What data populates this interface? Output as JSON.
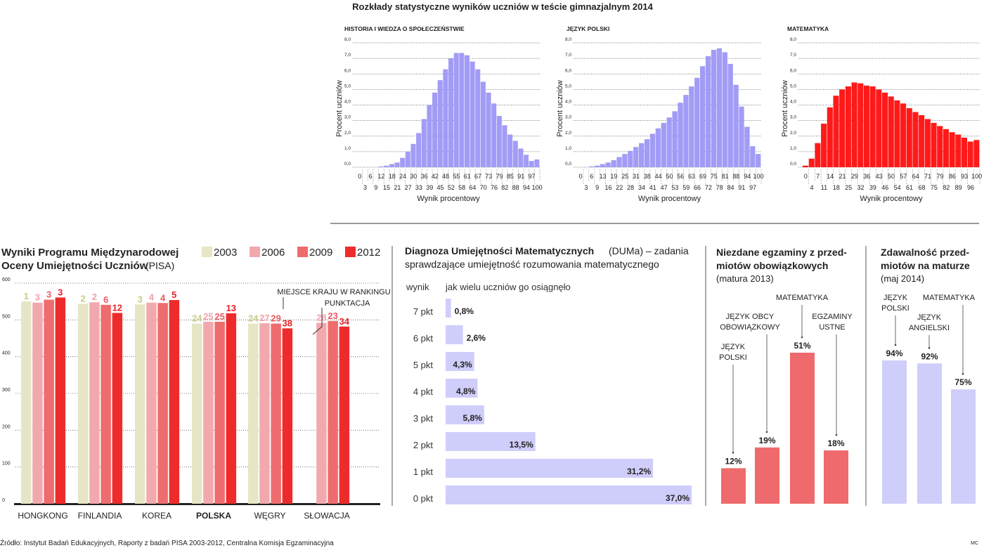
{
  "title": "Rozkłady statystyczne wyników uczniów w teście gimnazjalnym 2014",
  "source": "Źródło: Instytut Badań Edukacyjnych, Raporty z badań PISA 2003-2012, Centralna Komisja Egzaminacyjna",
  "author": "MC",
  "colors": {
    "purple": "#a29cf6",
    "red": "#ff1a1a",
    "lavender": "#cfcdfa",
    "salmon": "#ef6a6c",
    "y2003": "#e6e6c6",
    "y2006": "#f2a9ae",
    "y2009": "#ef6c6e",
    "y2012": "#ee2b2b"
  },
  "chart_data": [
    {
      "type": "bar",
      "title": "HISTORIA I WIEDZA O SPOŁECZEŃSTWIE",
      "xlabel": "Wynik procentowy",
      "ylabel": "Procent uczniów",
      "ylim": [
        0,
        8
      ],
      "yticks": [
        "0,0",
        "1,0",
        "2,0",
        "3,0",
        "4,0",
        "5,0",
        "6,0",
        "7,0",
        "8,0"
      ],
      "grid": true,
      "color": "#a29cf6",
      "categories": [
        "0",
        "3",
        "6",
        "9",
        "12",
        "15",
        "18",
        "21",
        "24",
        "27",
        "30",
        "33",
        "36",
        "39",
        "42",
        "45",
        "48",
        "52",
        "55",
        "58",
        "61",
        "64",
        "67",
        "70",
        "73",
        "76",
        "79",
        "82",
        "85",
        "88",
        "91",
        "94",
        "97",
        "100"
      ],
      "values": [
        0,
        0,
        0,
        0,
        0.05,
        0.1,
        0.2,
        0.3,
        0.6,
        1.0,
        1.5,
        2.2,
        3.1,
        4.0,
        4.8,
        5.6,
        6.3,
        7.0,
        7.35,
        7.35,
        7.2,
        6.8,
        6.3,
        5.5,
        4.8,
        4.1,
        3.3,
        2.7,
        2.1,
        1.7,
        1.2,
        0.8,
        0.4,
        0.5
      ]
    },
    {
      "type": "bar",
      "title": "JĘZYK POLSKI",
      "xlabel": "Wynik procentowy",
      "ylabel": "Procent uczniów",
      "ylim": [
        0,
        8
      ],
      "yticks": [
        "0,0",
        "1,0",
        "2,0",
        "3,0",
        "4,0",
        "5,0",
        "6,0",
        "7,0",
        "8,0"
      ],
      "grid": true,
      "color": "#a29cf6",
      "categories": [
        "0",
        "3",
        "6",
        "9",
        "13",
        "16",
        "19",
        "22",
        "25",
        "28",
        "31",
        "34",
        "38",
        "41",
        "44",
        "47",
        "50",
        "53",
        "56",
        "59",
        "63",
        "66",
        "69",
        "72",
        "75",
        "78",
        "81",
        "84",
        "88",
        "91",
        "94",
        "97",
        "100"
      ],
      "values": [
        0,
        0,
        0.05,
        0.1,
        0.2,
        0.3,
        0.45,
        0.65,
        0.85,
        1.05,
        1.3,
        1.55,
        1.8,
        2.15,
        2.5,
        2.85,
        3.2,
        3.6,
        4.15,
        4.65,
        5.2,
        5.75,
        6.5,
        7.15,
        7.55,
        7.65,
        7.4,
        6.65,
        5.3,
        3.9,
        2.6,
        1.35,
        0.85
      ]
    },
    {
      "type": "bar",
      "title": "MATEMATYKA",
      "xlabel": "Wynik procentowy",
      "ylabel": "Procent uczniów",
      "ylim": [
        0,
        8
      ],
      "yticks": [
        "0,0",
        "1,0",
        "2,0",
        "3,0",
        "4,0",
        "5,0",
        "6,0",
        "7,0",
        "8,0"
      ],
      "grid": true,
      "color": "#ff1a1a",
      "categories": [
        "0",
        "4",
        "7",
        "11",
        "14",
        "18",
        "21",
        "25",
        "29",
        "32",
        "36",
        "39",
        "43",
        "46",
        "50",
        "54",
        "57",
        "61",
        "64",
        "68",
        "71",
        "75",
        "79",
        "82",
        "86",
        "89",
        "93",
        "96",
        "100"
      ],
      "values": [
        0.1,
        0.55,
        1.55,
        2.8,
        3.85,
        4.6,
        5.0,
        5.2,
        5.45,
        5.4,
        5.25,
        5.2,
        5.0,
        4.8,
        4.55,
        4.3,
        4.1,
        3.8,
        3.55,
        3.35,
        3.1,
        2.85,
        2.65,
        2.45,
        2.25,
        2.1,
        1.9,
        1.65,
        1.75
      ]
    },
    {
      "type": "bar",
      "title_bold": "Wyniki Programu Międzynarodowej",
      "title_bold2": "Oceny Umiejętności Uczniów",
      "title_light": "(PISA)",
      "ylim": [
        0,
        600
      ],
      "yticks": [
        "0",
        "100",
        "200",
        "300",
        "400",
        "500",
        "600"
      ],
      "grid": true,
      "legend": "top-right",
      "annotation_rank": "MIEJSCE KRAJU W RANKINGU",
      "annotation_score": "PUNKTACJA",
      "categories": [
        "HONGKONG",
        "FINLANDIA",
        "KOREA",
        "POLSKA",
        "WĘGRY",
        "SŁOWACJA"
      ],
      "series": [
        {
          "name": "2003",
          "values": [
            550,
            544,
            542,
            490,
            490,
            null
          ],
          "ranks": [
            "1",
            "2",
            "3",
            "24",
            "24",
            ""
          ]
        },
        {
          "name": "2006",
          "values": [
            547,
            548,
            547,
            495,
            491,
            492
          ],
          "ranks": [
            "3",
            "2",
            "4",
            "25",
            "27",
            "28"
          ]
        },
        {
          "name": "2009",
          "values": [
            555,
            541,
            546,
            495,
            490,
            497
          ],
          "ranks": [
            "3",
            "6",
            "4",
            "25",
            "29",
            "23"
          ]
        },
        {
          "name": "2012",
          "values": [
            561,
            519,
            554,
            518,
            477,
            482
          ],
          "ranks": [
            "3",
            "12",
            "5",
            "13",
            "38",
            "34"
          ]
        }
      ]
    },
    {
      "type": "bar",
      "orientation": "horizontal",
      "title_bold": "Diagnoza Umiejętności Matematycznych",
      "title_light": "(DUMa) – zadania",
      "title_line2": "sprawdzające umiejętność rozumowania matematycznego",
      "col_left": "wynik",
      "col_right": "jak wielu uczniów go osiągnęło",
      "categories": [
        "7 pkt",
        "6 pkt",
        "5 pkt",
        "4 pkt",
        "3 pkt",
        "2 pkt",
        "1 pkt",
        "0 pkt"
      ],
      "values": [
        0.8,
        2.6,
        4.3,
        4.8,
        5.8,
        13.5,
        31.2,
        37.0
      ],
      "labels": [
        "0,8%",
        "2,6%",
        "4,3%",
        "4,8%",
        "5,8%",
        "13,5%",
        "31,2%",
        "37,0%"
      ]
    },
    {
      "type": "bar",
      "title_line1": "Niezdane egzaminy z przed-",
      "title_line2": "miotów obowiązkowych",
      "subtitle": "(matura 2013)",
      "categories": [
        [
          "JĘZYK",
          "POLSKI"
        ],
        [
          "JĘZYK OBCY",
          "OBOWIĄZKOWY"
        ],
        [
          "MATEMATYKA"
        ],
        [
          "EGZAMINY",
          "USTNE"
        ]
      ],
      "values": [
        12,
        19,
        51,
        18
      ],
      "labels": [
        "12%",
        "19%",
        "51%",
        "18%"
      ]
    },
    {
      "type": "bar",
      "title_line1": "Zdawalność przed-",
      "title_line2": "miotów na maturze",
      "subtitle": "(maj 2014)",
      "categories": [
        [
          "JĘZYK",
          "POLSKI"
        ],
        [
          "JĘZYK",
          "ANGIELSKI"
        ],
        [
          "MATEMATYKA"
        ]
      ],
      "values": [
        94,
        92,
        75
      ],
      "labels": [
        "94%",
        "92%",
        "75%"
      ]
    }
  ]
}
